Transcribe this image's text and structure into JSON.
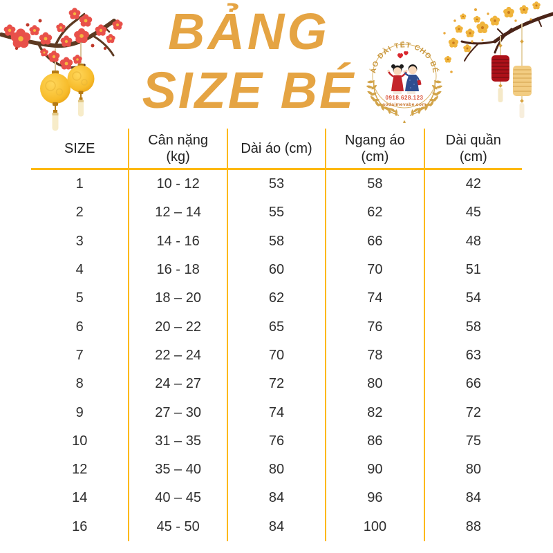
{
  "title": {
    "line1": "BẢNG",
    "line2": "SIZE BÉ"
  },
  "logo": {
    "arc_text": "ÁO DÀI TẾT CHO BÉ",
    "phone": "0918.628.123",
    "website": "aodaimevabe.com"
  },
  "table": {
    "headers": [
      [
        "SIZE"
      ],
      [
        "Cân nặng",
        "(kg)"
      ],
      [
        "Dài áo (cm)"
      ],
      [
        "Ngang áo",
        "(cm)"
      ],
      [
        "Dài quần",
        "(cm)"
      ]
    ],
    "rows": [
      [
        "1",
        "10 - 12",
        "53",
        "58",
        "42"
      ],
      [
        "2",
        "12 – 14",
        "55",
        "62",
        "45"
      ],
      [
        "3",
        "14 - 16",
        "58",
        "66",
        "48"
      ],
      [
        "4",
        "16 - 18",
        "60",
        "70",
        "51"
      ],
      [
        "5",
        "18 – 20",
        "62",
        "74",
        "54"
      ],
      [
        "6",
        "20 – 22",
        "65",
        "76",
        "58"
      ],
      [
        "7",
        "22 – 24",
        "70",
        "78",
        "63"
      ],
      [
        "8",
        "24 – 27",
        "72",
        "80",
        "66"
      ],
      [
        "9",
        "27 – 30",
        "74",
        "82",
        "72"
      ],
      [
        "10",
        "31 – 35",
        "76",
        "86",
        "75"
      ],
      [
        "12",
        "35 – 40",
        "80",
        "90",
        "80"
      ],
      [
        "14",
        "40 – 45",
        "84",
        "96",
        "84"
      ],
      [
        "16",
        "45 - 50",
        "84",
        "100",
        "88"
      ]
    ]
  },
  "chart_data": {
    "type": "table",
    "title": "BẢNG SIZE BÉ",
    "columns": [
      "SIZE",
      "Cân nặng (kg)",
      "Dài áo (cm)",
      "Ngang áo (cm)",
      "Dài quần (cm)"
    ],
    "rows": [
      [
        "1",
        "10 - 12",
        53,
        58,
        42
      ],
      [
        "2",
        "12 – 14",
        55,
        62,
        45
      ],
      [
        "3",
        "14 - 16",
        58,
        66,
        48
      ],
      [
        "4",
        "16 - 18",
        60,
        70,
        51
      ],
      [
        "5",
        "18 – 20",
        62,
        74,
        54
      ],
      [
        "6",
        "20 – 22",
        65,
        76,
        58
      ],
      [
        "7",
        "22 – 24",
        70,
        78,
        63
      ],
      [
        "8",
        "24 – 27",
        72,
        80,
        66
      ],
      [
        "9",
        "27 – 30",
        74,
        82,
        72
      ],
      [
        "10",
        "31 – 35",
        76,
        86,
        75
      ],
      [
        "12",
        "35 – 40",
        80,
        90,
        80
      ],
      [
        "14",
        "40 – 45",
        84,
        96,
        84
      ],
      [
        "16",
        "45 - 50",
        84,
        100,
        88
      ]
    ],
    "layout_hints": {
      "column_dividers": "gold vertical lines",
      "header_underline": "gold",
      "row_lines": "none"
    }
  },
  "colors": {
    "title_gold": "#E5A443",
    "table_line_gold": "#FDB913",
    "text_dark": "#2F2F2F",
    "logo_gold": "#C9973D",
    "phone_red": "#D94F35",
    "lantern_yellow": "#F7C331",
    "lantern_red": "#AD1119",
    "blossom_red": "#E8504A",
    "branch_brown": "#5D3A22"
  },
  "decorations": {
    "top_left": "peach-blossom branch with two round yellow lanterns",
    "top_right": "apricot-blossom branch with red and gold cylinder lanterns",
    "logo_center": "circular shop badge with boy and girl in ao dai, hearts, laurel wreath"
  }
}
